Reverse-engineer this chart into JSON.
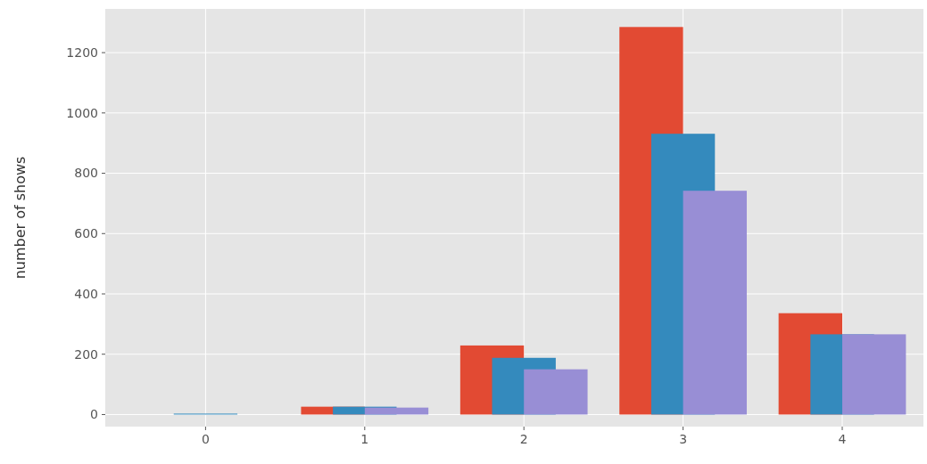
{
  "chart_data": {
    "type": "bar",
    "ylabel": "number of shows",
    "categories": [
      "0",
      "1",
      "2",
      "3",
      "4"
    ],
    "series": [
      {
        "color": "#e24a33",
        "values": [
          0,
          26,
          229,
          1285,
          336
        ]
      },
      {
        "color": "#348abd",
        "values": [
          3,
          26,
          188,
          931,
          266
        ]
      },
      {
        "color": "#988ed5",
        "values": [
          0,
          23,
          150,
          742,
          266
        ]
      }
    ],
    "ylim": [
      -40,
      1345
    ],
    "yticks": [
      0,
      200,
      400,
      600,
      800,
      1000,
      1200
    ],
    "grid": true
  }
}
